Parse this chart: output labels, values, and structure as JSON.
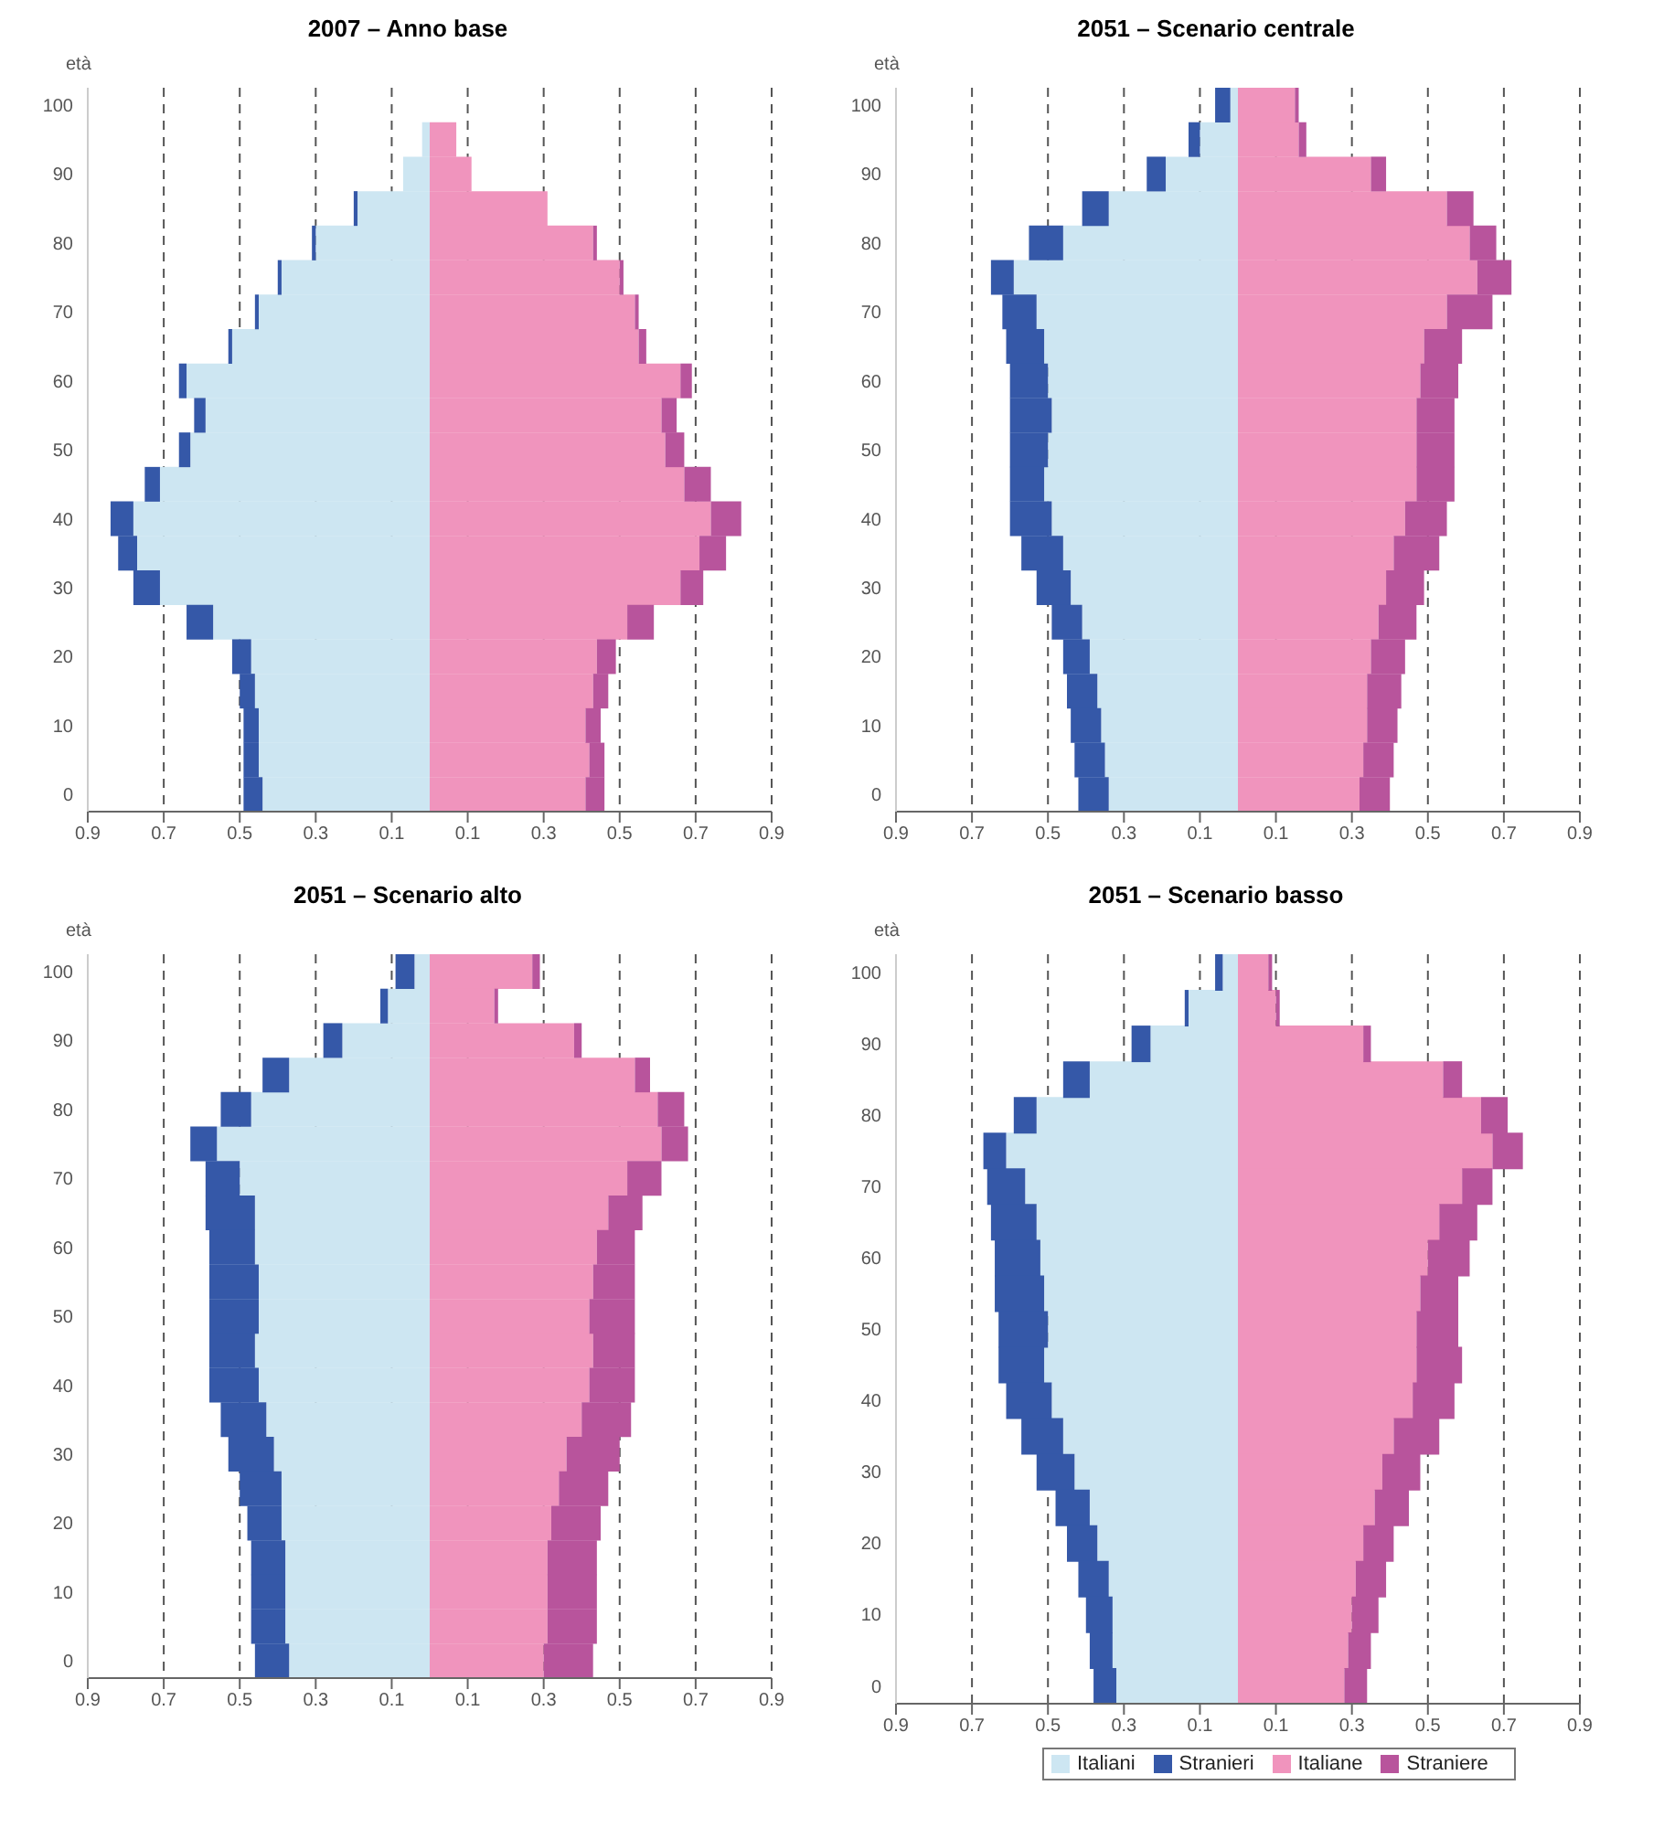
{
  "chart_data": [
    {
      "type": "bar",
      "title": "2007 – Anno base",
      "ylabel": "età",
      "orientation": "horizontal",
      "stacked": true,
      "grid": "x",
      "xlim": [
        -0.9,
        0.9
      ],
      "xticks": [
        {
          "value": -0.9,
          "label": "0.9"
        },
        {
          "value": -0.7,
          "label": "0.7"
        },
        {
          "value": -0.5,
          "label": "0.5"
        },
        {
          "value": -0.3,
          "label": "0.3"
        },
        {
          "value": -0.1,
          "label": "0.1"
        },
        {
          "value": 0.1,
          "label": "0.1"
        },
        {
          "value": 0.3,
          "label": "0.3"
        },
        {
          "value": 0.5,
          "label": "0.5"
        },
        {
          "value": 0.7,
          "label": "0.7"
        },
        {
          "value": 0.9,
          "label": "0.9"
        }
      ],
      "categories": [
        "100",
        null,
        "90",
        null,
        "80",
        null,
        "70",
        null,
        "60",
        null,
        "50",
        null,
        "40",
        null,
        "30",
        null,
        "20",
        null,
        "10",
        null,
        "0"
      ],
      "series": [
        {
          "color": "#cde6f2",
          "values": [
            0,
            -0.02,
            -0.07,
            -0.19,
            -0.3,
            -0.39,
            -0.45,
            -0.52,
            -0.64,
            -0.59,
            -0.63,
            -0.71,
            -0.78,
            -0.77,
            -0.71,
            -0.57,
            -0.47,
            -0.46,
            -0.45,
            -0.45,
            -0.44
          ]
        },
        {
          "color": "#3558a8",
          "values": [
            0,
            0,
            0,
            -0.01,
            -0.01,
            -0.01,
            -0.01,
            -0.01,
            -0.02,
            -0.03,
            -0.03,
            -0.04,
            -0.06,
            -0.05,
            -0.07,
            -0.07,
            -0.05,
            -0.04,
            -0.04,
            -0.04,
            -0.05
          ]
        },
        {
          "color": "#f094bd",
          "values": [
            0,
            0.07,
            0.11,
            0.31,
            0.43,
            0.5,
            0.54,
            0.55,
            0.66,
            0.61,
            0.62,
            0.67,
            0.74,
            0.71,
            0.66,
            0.52,
            0.44,
            0.43,
            0.41,
            0.42,
            0.41
          ]
        },
        {
          "color": "#b8549c",
          "values": [
            0,
            0,
            0,
            0,
            0.01,
            0.01,
            0.01,
            0.02,
            0.03,
            0.04,
            0.05,
            0.07,
            0.08,
            0.07,
            0.06,
            0.07,
            0.05,
            0.04,
            0.04,
            0.04,
            0.05
          ]
        }
      ]
    },
    {
      "type": "bar",
      "title": "2051 – Scenario centrale",
      "ylabel": "età",
      "orientation": "horizontal",
      "stacked": true,
      "grid": "x",
      "xlim": [
        -0.9,
        0.9
      ],
      "xticks": [
        {
          "value": -0.9,
          "label": "0.9"
        },
        {
          "value": -0.7,
          "label": "0.7"
        },
        {
          "value": -0.5,
          "label": "0.5"
        },
        {
          "value": -0.3,
          "label": "0.3"
        },
        {
          "value": -0.1,
          "label": "0.1"
        },
        {
          "value": 0.1,
          "label": "0.1"
        },
        {
          "value": 0.3,
          "label": "0.3"
        },
        {
          "value": 0.5,
          "label": "0.5"
        },
        {
          "value": 0.7,
          "label": "0.7"
        },
        {
          "value": 0.9,
          "label": "0.9"
        }
      ],
      "categories": [
        "100",
        null,
        "90",
        null,
        "80",
        null,
        "70",
        null,
        "60",
        null,
        "50",
        null,
        "40",
        null,
        "30",
        null,
        "20",
        null,
        "10",
        null,
        "0"
      ],
      "series": [
        {
          "color": "#cde6f2",
          "values": [
            -0.02,
            -0.1,
            -0.19,
            -0.34,
            -0.46,
            -0.59,
            -0.53,
            -0.51,
            -0.5,
            -0.49,
            -0.5,
            -0.51,
            -0.49,
            -0.46,
            -0.44,
            -0.41,
            -0.39,
            -0.37,
            -0.36,
            -0.35,
            -0.34
          ]
        },
        {
          "color": "#3558a8",
          "values": [
            -0.04,
            -0.03,
            -0.05,
            -0.07,
            -0.09,
            -0.06,
            -0.09,
            -0.1,
            -0.1,
            -0.11,
            -0.1,
            -0.09,
            -0.11,
            -0.11,
            -0.09,
            -0.08,
            -0.07,
            -0.08,
            -0.08,
            -0.08,
            -0.08
          ]
        },
        {
          "color": "#f094bd",
          "values": [
            0.15,
            0.16,
            0.35,
            0.55,
            0.61,
            0.63,
            0.55,
            0.49,
            0.48,
            0.47,
            0.47,
            0.47,
            0.44,
            0.41,
            0.39,
            0.37,
            0.35,
            0.34,
            0.34,
            0.33,
            0.32
          ]
        },
        {
          "color": "#b8549c",
          "values": [
            0.01,
            0.02,
            0.04,
            0.07,
            0.07,
            0.09,
            0.12,
            0.1,
            0.1,
            0.1,
            0.1,
            0.1,
            0.11,
            0.12,
            0.1,
            0.1,
            0.09,
            0.09,
            0.08,
            0.08,
            0.08
          ]
        }
      ]
    },
    {
      "type": "bar",
      "title": "2051 – Scenario alto",
      "ylabel": "età",
      "orientation": "horizontal",
      "stacked": true,
      "grid": "x",
      "xlim": [
        -0.9,
        0.9
      ],
      "xticks": [
        {
          "value": -0.9,
          "label": "0.9"
        },
        {
          "value": -0.7,
          "label": "0.7"
        },
        {
          "value": -0.5,
          "label": "0.5"
        },
        {
          "value": -0.3,
          "label": "0.3"
        },
        {
          "value": -0.1,
          "label": "0.1"
        },
        {
          "value": 0.1,
          "label": "0.1"
        },
        {
          "value": 0.3,
          "label": "0.3"
        },
        {
          "value": 0.5,
          "label": "0.5"
        },
        {
          "value": 0.7,
          "label": "0.7"
        },
        {
          "value": 0.9,
          "label": "0.9"
        }
      ],
      "categories": [
        "100",
        null,
        "90",
        null,
        "80",
        null,
        "70",
        null,
        "60",
        null,
        "50",
        null,
        "40",
        null,
        "30",
        null,
        "20",
        null,
        "10",
        null,
        "0"
      ],
      "series": [
        {
          "color": "#cde6f2",
          "values": [
            -0.04,
            -0.11,
            -0.23,
            -0.37,
            -0.47,
            -0.56,
            -0.5,
            -0.46,
            -0.46,
            -0.45,
            -0.45,
            -0.46,
            -0.45,
            -0.43,
            -0.41,
            -0.39,
            -0.39,
            -0.38,
            -0.38,
            -0.38,
            -0.37
          ]
        },
        {
          "color": "#3558a8",
          "values": [
            -0.05,
            -0.02,
            -0.05,
            -0.07,
            -0.08,
            -0.07,
            -0.09,
            -0.13,
            -0.12,
            -0.13,
            -0.13,
            -0.12,
            -0.13,
            -0.12,
            -0.12,
            -0.11,
            -0.09,
            -0.09,
            -0.09,
            -0.09,
            -0.09
          ]
        },
        {
          "color": "#f094bd",
          "values": [
            0.27,
            0.17,
            0.38,
            0.54,
            0.6,
            0.61,
            0.52,
            0.47,
            0.44,
            0.43,
            0.42,
            0.43,
            0.42,
            0.4,
            0.36,
            0.34,
            0.32,
            0.31,
            0.31,
            0.31,
            0.3
          ]
        },
        {
          "color": "#b8549c",
          "values": [
            0.02,
            0.01,
            0.02,
            0.04,
            0.07,
            0.07,
            0.09,
            0.09,
            0.1,
            0.11,
            0.12,
            0.11,
            0.12,
            0.13,
            0.14,
            0.13,
            0.13,
            0.13,
            0.13,
            0.13,
            0.13
          ]
        }
      ]
    },
    {
      "type": "bar",
      "title": "2051 – Scenario basso",
      "ylabel": "età",
      "orientation": "horizontal",
      "stacked": true,
      "grid": "x",
      "legend": "bottom",
      "xlim": [
        -0.9,
        0.9
      ],
      "xticks": [
        {
          "value": -0.9,
          "label": "0.9"
        },
        {
          "value": -0.7,
          "label": "0.7"
        },
        {
          "value": -0.5,
          "label": "0.5"
        },
        {
          "value": -0.3,
          "label": "0.3"
        },
        {
          "value": -0.1,
          "label": "0.1"
        },
        {
          "value": 0.1,
          "label": "0.1"
        },
        {
          "value": 0.3,
          "label": "0.3"
        },
        {
          "value": 0.5,
          "label": "0.5"
        },
        {
          "value": 0.7,
          "label": "0.7"
        },
        {
          "value": 0.9,
          "label": "0.9"
        }
      ],
      "categories": [
        "100",
        null,
        "90",
        null,
        "80",
        null,
        "70",
        null,
        "60",
        null,
        "50",
        null,
        "40",
        null,
        "30",
        null,
        "20",
        null,
        "10",
        null,
        "0"
      ],
      "series": [
        {
          "name": "Italiani",
          "color": "#cde6f2",
          "values": [
            -0.04,
            -0.13,
            -0.23,
            -0.39,
            -0.53,
            -0.61,
            -0.56,
            -0.53,
            -0.52,
            -0.51,
            -0.5,
            -0.51,
            -0.49,
            -0.46,
            -0.43,
            -0.39,
            -0.37,
            -0.34,
            -0.33,
            -0.33,
            -0.32
          ]
        },
        {
          "name": "Stranieri",
          "color": "#3558a8",
          "values": [
            -0.02,
            -0.01,
            -0.05,
            -0.07,
            -0.06,
            -0.06,
            -0.1,
            -0.12,
            -0.12,
            -0.13,
            -0.13,
            -0.12,
            -0.12,
            -0.11,
            -0.1,
            -0.09,
            -0.08,
            -0.08,
            -0.07,
            -0.06,
            -0.06
          ]
        },
        {
          "name": "Italiane",
          "color": "#f094bd",
          "values": [
            0.08,
            0.1,
            0.33,
            0.54,
            0.64,
            0.67,
            0.59,
            0.53,
            0.5,
            0.48,
            0.47,
            0.47,
            0.46,
            0.41,
            0.38,
            0.36,
            0.33,
            0.31,
            0.3,
            0.29,
            0.28
          ]
        },
        {
          "name": "Straniere",
          "color": "#b8549c",
          "values": [
            0.01,
            0.01,
            0.02,
            0.05,
            0.07,
            0.08,
            0.08,
            0.1,
            0.11,
            0.1,
            0.11,
            0.12,
            0.11,
            0.12,
            0.1,
            0.09,
            0.08,
            0.08,
            0.07,
            0.06,
            0.06
          ]
        }
      ]
    }
  ]
}
